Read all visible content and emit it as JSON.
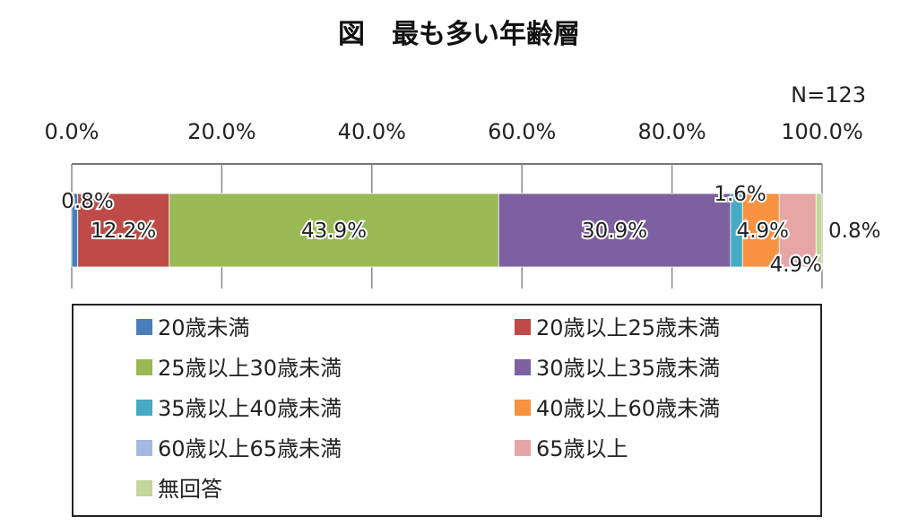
{
  "chart_data": {
    "type": "bar",
    "orientation": "horizontal-stacked-100",
    "title": "図　最も多い年齢層",
    "sample_size_label": "N=123",
    "xlim": [
      0,
      100
    ],
    "x_ticks": [
      "0.0%",
      "20.0%",
      "40.0%",
      "60.0%",
      "80.0%",
      "100.0%"
    ],
    "series": [
      {
        "name": "20歳未満",
        "value": 0.8,
        "label": "0.8%",
        "color": "#4a7ebb"
      },
      {
        "name": "20歳以上25歳未満",
        "value": 12.2,
        "label": "12.2%",
        "color": "#be4b48"
      },
      {
        "name": "25歳以上30歳未満",
        "value": 43.9,
        "label": "43.9%",
        "color": "#98b954"
      },
      {
        "name": "30歳以上35歳未満",
        "value": 30.9,
        "label": "30.9%",
        "color": "#7d60a0"
      },
      {
        "name": "35歳以上40歳未満",
        "value": 1.6,
        "label": "1.6%",
        "color": "#46aac5"
      },
      {
        "name": "40歳以上60歳未満",
        "value": 4.9,
        "label": "4.9%",
        "color": "#f69240"
      },
      {
        "name": "60歳以上65歳未満",
        "value": 0.0,
        "label": "",
        "color": "#a5b9e0"
      },
      {
        "name": "65歳以上",
        "value": 4.9,
        "label": "4.9%",
        "color": "#e6a6a6"
      },
      {
        "name": "無回答",
        "value": 0.8,
        "label": "0.8%",
        "color": "#c3d69b"
      }
    ],
    "legend_placement": "bottom"
  }
}
